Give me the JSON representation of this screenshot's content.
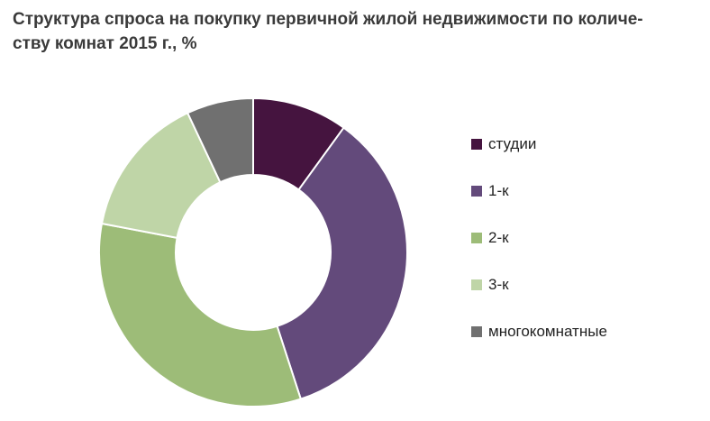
{
  "title": {
    "line1": "Структура спроса на покупку первичной жилой недвижимости по количе-",
    "line2": "ству комнат 2015 г., %"
  },
  "chart_data": {
    "type": "pie",
    "variant": "donut",
    "title": "Структура спроса на покупку первичной жилой недвижимости по количеству комнат 2015 г., %",
    "categories": [
      "студии",
      "1-к",
      "2-к",
      "3-к",
      "многокомнатные"
    ],
    "values": [
      10,
      35,
      33,
      15,
      7
    ],
    "colors": [
      "#45143f",
      "#634a7b",
      "#9dbc78",
      "#bfd5a7",
      "#707070"
    ],
    "legend_position": "right"
  }
}
